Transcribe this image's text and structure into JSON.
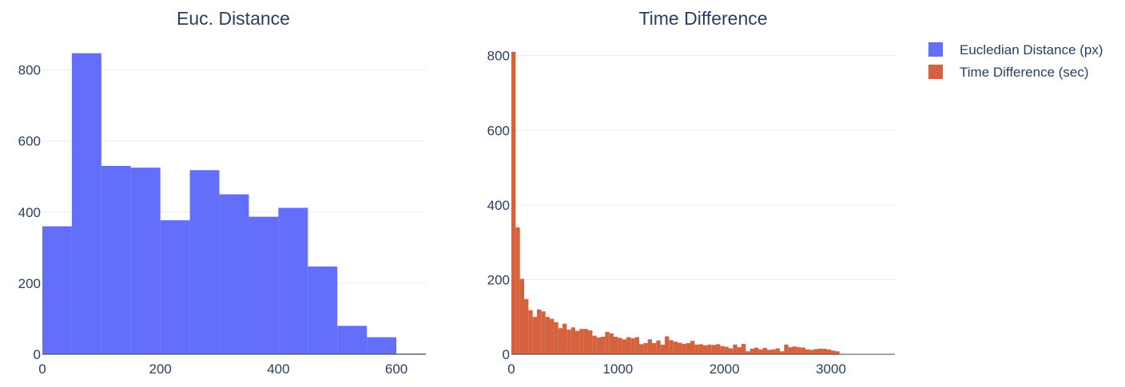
{
  "chart_data": [
    {
      "type": "bar",
      "title": "Euc. Distance",
      "xlabel": "",
      "ylabel": "",
      "series_name": "Eucledian Distance (px)",
      "color": "#636efa",
      "bin_width": 50,
      "bins": [
        {
          "x0": 0,
          "count": 360
        },
        {
          "x0": 50,
          "count": 847
        },
        {
          "x0": 100,
          "count": 530
        },
        {
          "x0": 150,
          "count": 525
        },
        {
          "x0": 200,
          "count": 377
        },
        {
          "x0": 250,
          "count": 518
        },
        {
          "x0": 300,
          "count": 450
        },
        {
          "x0": 350,
          "count": 387
        },
        {
          "x0": 400,
          "count": 412
        },
        {
          "x0": 450,
          "count": 247
        },
        {
          "x0": 500,
          "count": 80
        },
        {
          "x0": 550,
          "count": 48
        },
        {
          "x0": 600,
          "count": 2
        }
      ],
      "xlim": [
        0,
        650
      ],
      "ylim": [
        0,
        880
      ],
      "xticks": [
        0,
        200,
        400,
        600
      ],
      "yticks": [
        0,
        200,
        400,
        600,
        800
      ],
      "grid": true
    },
    {
      "type": "bar",
      "title": "Time Difference",
      "xlabel": "",
      "ylabel": "",
      "series_name": "Time Difference (sec)",
      "color": "#d4623f",
      "bin_width": 40,
      "bins": [
        {
          "x0": 0,
          "count": 810
        },
        {
          "x0": 40,
          "count": 340
        },
        {
          "x0": 80,
          "count": 202
        },
        {
          "x0": 120,
          "count": 148
        },
        {
          "x0": 160,
          "count": 118
        },
        {
          "x0": 200,
          "count": 100
        },
        {
          "x0": 240,
          "count": 120
        },
        {
          "x0": 280,
          "count": 115
        },
        {
          "x0": 320,
          "count": 100
        },
        {
          "x0": 360,
          "count": 95
        },
        {
          "x0": 400,
          "count": 86
        },
        {
          "x0": 440,
          "count": 70
        },
        {
          "x0": 480,
          "count": 82
        },
        {
          "x0": 520,
          "count": 66
        },
        {
          "x0": 560,
          "count": 72
        },
        {
          "x0": 600,
          "count": 63
        },
        {
          "x0": 640,
          "count": 68
        },
        {
          "x0": 680,
          "count": 68
        },
        {
          "x0": 720,
          "count": 64
        },
        {
          "x0": 760,
          "count": 50
        },
        {
          "x0": 800,
          "count": 45
        },
        {
          "x0": 840,
          "count": 47
        },
        {
          "x0": 880,
          "count": 60
        },
        {
          "x0": 920,
          "count": 56
        },
        {
          "x0": 960,
          "count": 47
        },
        {
          "x0": 1000,
          "count": 44
        },
        {
          "x0": 1040,
          "count": 40
        },
        {
          "x0": 1080,
          "count": 46
        },
        {
          "x0": 1120,
          "count": 43
        },
        {
          "x0": 1160,
          "count": 46
        },
        {
          "x0": 1200,
          "count": 27
        },
        {
          "x0": 1240,
          "count": 30
        },
        {
          "x0": 1280,
          "count": 40
        },
        {
          "x0": 1320,
          "count": 30
        },
        {
          "x0": 1360,
          "count": 37
        },
        {
          "x0": 1400,
          "count": 26
        },
        {
          "x0": 1440,
          "count": 48
        },
        {
          "x0": 1480,
          "count": 38
        },
        {
          "x0": 1520,
          "count": 34
        },
        {
          "x0": 1560,
          "count": 31
        },
        {
          "x0": 1600,
          "count": 28
        },
        {
          "x0": 1640,
          "count": 30
        },
        {
          "x0": 1680,
          "count": 36
        },
        {
          "x0": 1720,
          "count": 26
        },
        {
          "x0": 1760,
          "count": 27
        },
        {
          "x0": 1800,
          "count": 24
        },
        {
          "x0": 1840,
          "count": 26
        },
        {
          "x0": 1880,
          "count": 25
        },
        {
          "x0": 1920,
          "count": 27
        },
        {
          "x0": 1960,
          "count": 22
        },
        {
          "x0": 2000,
          "count": 20
        },
        {
          "x0": 2040,
          "count": 16
        },
        {
          "x0": 2080,
          "count": 26
        },
        {
          "x0": 2120,
          "count": 19
        },
        {
          "x0": 2160,
          "count": 28
        },
        {
          "x0": 2200,
          "count": 8
        },
        {
          "x0": 2240,
          "count": 15
        },
        {
          "x0": 2280,
          "count": 18
        },
        {
          "x0": 2320,
          "count": 13
        },
        {
          "x0": 2360,
          "count": 17
        },
        {
          "x0": 2400,
          "count": 12
        },
        {
          "x0": 2440,
          "count": 13
        },
        {
          "x0": 2480,
          "count": 16
        },
        {
          "x0": 2520,
          "count": 8
        },
        {
          "x0": 2560,
          "count": 26
        },
        {
          "x0": 2600,
          "count": 19
        },
        {
          "x0": 2640,
          "count": 21
        },
        {
          "x0": 2680,
          "count": 19
        },
        {
          "x0": 2720,
          "count": 18
        },
        {
          "x0": 2760,
          "count": 13
        },
        {
          "x0": 2800,
          "count": 12
        },
        {
          "x0": 2840,
          "count": 14
        },
        {
          "x0": 2880,
          "count": 15
        },
        {
          "x0": 2920,
          "count": 15
        },
        {
          "x0": 2960,
          "count": 13
        },
        {
          "x0": 3000,
          "count": 10
        },
        {
          "x0": 3040,
          "count": 8
        }
      ],
      "xlim": [
        0,
        3600
      ],
      "ylim": [
        0,
        810
      ],
      "xticks": [
        0,
        1000,
        2000,
        3000
      ],
      "yticks": [
        0,
        200,
        400,
        600,
        800
      ],
      "grid": true
    }
  ],
  "legend": {
    "placement": "top-right",
    "items": [
      {
        "label": "Eucledian Distance (px)",
        "color": "#636efa"
      },
      {
        "label": "Time Difference (sec)",
        "color": "#d4623f"
      }
    ]
  }
}
